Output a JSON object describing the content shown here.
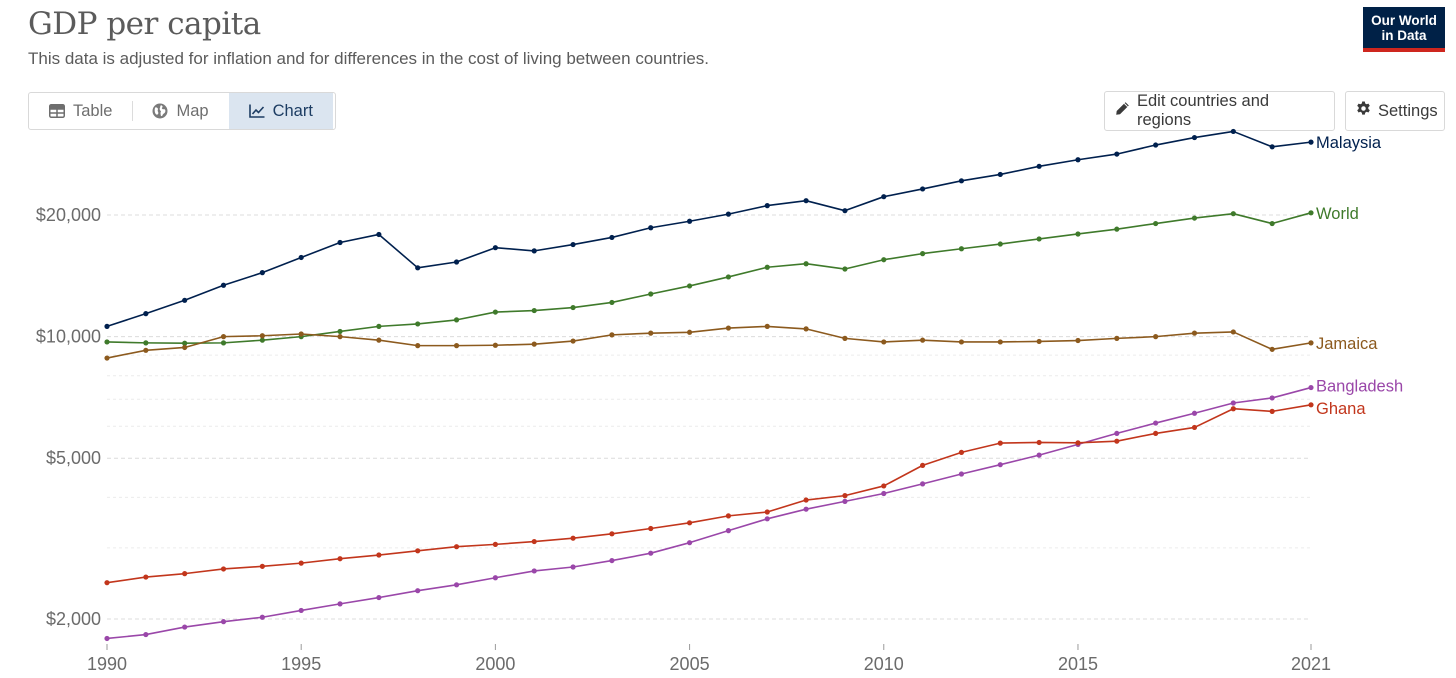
{
  "header": {
    "title": "GDP per capita",
    "subtitle": "This data is adjusted for inflation and for differences in the cost of living between countries.",
    "logo_line1": "Our World",
    "logo_line2": "in Data"
  },
  "tabs": [
    {
      "label": "Table",
      "icon": "table-icon",
      "active": false
    },
    {
      "label": "Map",
      "icon": "globe-icon",
      "active": false
    },
    {
      "label": "Chart",
      "icon": "line-chart-icon",
      "active": true
    }
  ],
  "controls": {
    "edit_label": "Edit countries and regions",
    "settings_label": "Settings"
  },
  "colors": {
    "Malaysia": "#00204e",
    "World": "#3f7a2b",
    "Jamaica": "#8c5a1e",
    "Bangladesh": "#9a47a9",
    "Ghana": "#c2361c"
  },
  "chart_data": {
    "type": "line",
    "title": "GDP per capita",
    "subtitle": "This data is adjusted for inflation and for differences in the cost of living between countries.",
    "xlabel": "",
    "ylabel": "",
    "yscale": "log",
    "xlim": [
      1990,
      2021
    ],
    "ylim": [
      1800,
      29000
    ],
    "yticks": [
      {
        "value": 2000,
        "label": "$2,000"
      },
      {
        "value": 5000,
        "label": "$5,000"
      },
      {
        "value": 10000,
        "label": "$10,000"
      },
      {
        "value": 20000,
        "label": "$20,000"
      }
    ],
    "xticks": [
      {
        "value": 1990,
        "label": "1990"
      },
      {
        "value": 1995,
        "label": "1995"
      },
      {
        "value": 2000,
        "label": "2000"
      },
      {
        "value": 2005,
        "label": "2005"
      },
      {
        "value": 2010,
        "label": "2010"
      },
      {
        "value": 2015,
        "label": "2015"
      },
      {
        "value": 2021,
        "label": "2021"
      }
    ],
    "x": [
      1990,
      1991,
      1992,
      1993,
      1994,
      1995,
      1996,
      1997,
      1998,
      1999,
      2000,
      2001,
      2002,
      2003,
      2004,
      2005,
      2006,
      2007,
      2008,
      2009,
      2010,
      2011,
      2012,
      2013,
      2014,
      2015,
      2016,
      2017,
      2018,
      2019,
      2020,
      2021
    ],
    "series": [
      {
        "name": "Malaysia",
        "values": [
          10600,
          11400,
          12300,
          13400,
          14400,
          15700,
          17100,
          17900,
          14800,
          15300,
          16600,
          16300,
          16900,
          17600,
          18600,
          19300,
          20100,
          21100,
          21700,
          20500,
          22200,
          23200,
          24300,
          25200,
          26400,
          27400,
          28300,
          29800,
          31100,
          32200,
          29500,
          30300
        ]
      },
      {
        "name": "World",
        "values": [
          9700,
          9650,
          9630,
          9650,
          9800,
          10000,
          10300,
          10600,
          10750,
          11000,
          11500,
          11600,
          11800,
          12150,
          12750,
          13350,
          14050,
          14850,
          15150,
          14700,
          15500,
          16050,
          16500,
          16950,
          17450,
          17950,
          18450,
          19050,
          19650,
          20150,
          19050,
          20250
        ]
      },
      {
        "name": "Jamaica",
        "values": [
          8850,
          9250,
          9400,
          10000,
          10050,
          10150,
          10000,
          9800,
          9500,
          9500,
          9520,
          9580,
          9750,
          10100,
          10200,
          10250,
          10500,
          10600,
          10450,
          9900,
          9700,
          9800,
          9700,
          9700,
          9730,
          9780,
          9900,
          10000,
          10200,
          10270,
          9300,
          9650
        ]
      },
      {
        "name": "Bangladesh",
        "values": [
          1790,
          1830,
          1910,
          1970,
          2020,
          2100,
          2180,
          2260,
          2350,
          2430,
          2530,
          2630,
          2690,
          2790,
          2910,
          3090,
          3310,
          3540,
          3740,
          3910,
          4090,
          4320,
          4570,
          4820,
          5090,
          5410,
          5760,
          6110,
          6460,
          6850,
          7050,
          7480
        ]
      },
      {
        "name": "Ghana",
        "values": [
          2460,
          2540,
          2590,
          2660,
          2700,
          2750,
          2820,
          2880,
          2950,
          3020,
          3060,
          3110,
          3170,
          3250,
          3350,
          3460,
          3600,
          3680,
          3940,
          4040,
          4270,
          4800,
          5170,
          5450,
          5470,
          5460,
          5510,
          5760,
          5960,
          6630,
          6530,
          6780
        ]
      }
    ]
  }
}
